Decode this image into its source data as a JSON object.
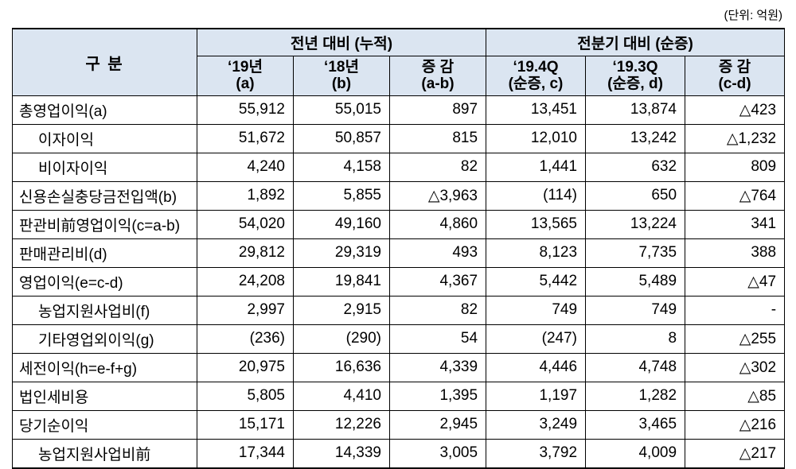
{
  "unit_label": "(단위: 억원)",
  "colors": {
    "header_bg": "#dbe5f1",
    "border": "#000000"
  },
  "table": {
    "header": {
      "category": "구 분",
      "group1": "전년 대비 (누적)",
      "group2": "전분기 대비 (순증)",
      "cols": [
        {
          "line1": "‘19년",
          "line2": "(a)"
        },
        {
          "line1": "‘18년",
          "line2": "(b)"
        },
        {
          "line1": "증 감",
          "line2": "(a-b)"
        },
        {
          "line1": "‘19.4Q",
          "line2": "(순증, c)"
        },
        {
          "line1": "‘19.3Q",
          "line2": "(순증, d)"
        },
        {
          "line1": "증 감",
          "line2": "(c-d)"
        }
      ]
    },
    "rows": [
      {
        "label": "총영업이익(a)",
        "indent": false,
        "values": [
          "55,912",
          "55,015",
          "897",
          "13,451",
          "13,874",
          "△423"
        ]
      },
      {
        "label": "이자이익",
        "indent": true,
        "values": [
          "51,672",
          "50,857",
          "815",
          "12,010",
          "13,242",
          "△1,232"
        ]
      },
      {
        "label": "비이자이익",
        "indent": true,
        "values": [
          "4,240",
          "4,158",
          "82",
          "1,441",
          "632",
          "809"
        ]
      },
      {
        "label": "신용손실충당금전입액(b)",
        "indent": false,
        "values": [
          "1,892",
          "5,855",
          "△3,963",
          "(114)",
          "650",
          "△764"
        ]
      },
      {
        "label": "판관비前영업이익(c=a-b)",
        "indent": false,
        "values": [
          "54,020",
          "49,160",
          "4,860",
          "13,565",
          "13,224",
          "341"
        ]
      },
      {
        "label": "판매관리비(d)",
        "indent": false,
        "values": [
          "29,812",
          "29,319",
          "493",
          "8,123",
          "7,735",
          "388"
        ]
      },
      {
        "label": "영업이익(e=c-d)",
        "indent": false,
        "values": [
          "24,208",
          "19,841",
          "4,367",
          "5,442",
          "5,489",
          "△47"
        ]
      },
      {
        "label": "농업지원사업비(f)",
        "indent": true,
        "values": [
          "2,997",
          "2,915",
          "82",
          "749",
          "749",
          "-"
        ]
      },
      {
        "label": "기타영업외이익(g)",
        "indent": true,
        "values": [
          "(236)",
          "(290)",
          "54",
          "(247)",
          "8",
          "△255"
        ]
      },
      {
        "label": "세전이익(h=e-f+g)",
        "indent": false,
        "values": [
          "20,975",
          "16,636",
          "4,339",
          "4,446",
          "4,748",
          "△302"
        ]
      },
      {
        "label": "법인세비용",
        "indent": false,
        "values": [
          "5,805",
          "4,410",
          "1,395",
          "1,197",
          "1,282",
          "△85"
        ]
      },
      {
        "label": "당기순이익",
        "indent": false,
        "values": [
          "15,171",
          "12,226",
          "2,945",
          "3,249",
          "3,465",
          "△216"
        ]
      },
      {
        "label": "농업지원사업비前",
        "indent": true,
        "values": [
          "17,344",
          "14,339",
          "3,005",
          "3,792",
          "4,009",
          "△217"
        ]
      }
    ]
  }
}
